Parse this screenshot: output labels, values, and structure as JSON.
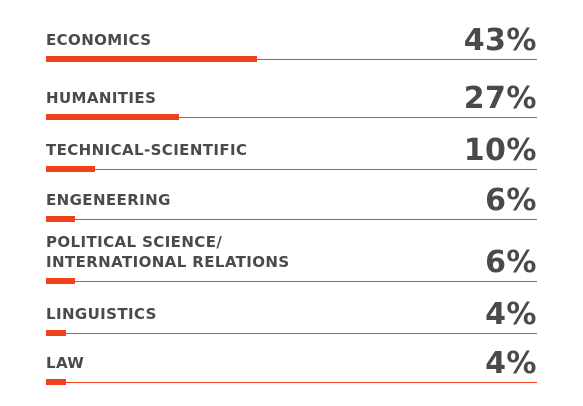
{
  "chart_data": {
    "type": "bar",
    "orientation": "horizontal",
    "categories": [
      "ECONOMICS",
      "HUMANITIES",
      "TECHNICAL-SCIENTIFIC",
      "ENGENEERING",
      "POLITICAL SCIENCE/\nINTERNATIONAL RELATIONS",
      "LINGUISTICS",
      "LAW"
    ],
    "values": [
      43,
      27,
      10,
      6,
      6,
      4,
      4
    ],
    "value_labels": [
      "43%",
      "27%",
      "10%",
      "6%",
      "6%",
      "4%",
      "4%"
    ],
    "unit": "%",
    "xlim": [
      0,
      100
    ],
    "title": "",
    "xlabel": "",
    "ylabel": "",
    "grid": false,
    "legend": "none",
    "bar_color": "#f0421a",
    "text_color": "#4a4a4a"
  }
}
